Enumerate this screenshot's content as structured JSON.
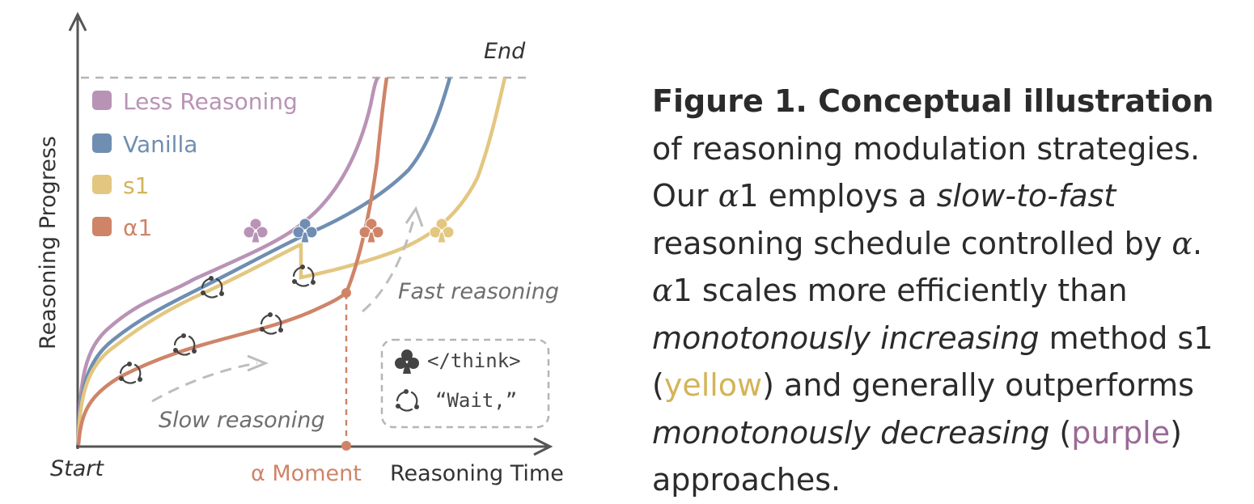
{
  "diagram": {
    "y_axis_label": "Reasoning Progress",
    "x_axis_label": "Reasoning Time",
    "start_label": "Start",
    "end_label": "End",
    "alpha_moment_label": "α Moment",
    "slow_label": "Slow reasoning",
    "fast_label": "Fast reasoning",
    "legend": [
      {
        "key": "less",
        "label": "Less Reasoning",
        "color": "#b993b6"
      },
      {
        "key": "vanilla",
        "label": "Vanilla",
        "color": "#6f8eb2"
      },
      {
        "key": "s1",
        "label": "s1",
        "color": "#e3c780"
      },
      {
        "key": "alpha1",
        "label": "α1",
        "color": "#cf8468"
      }
    ],
    "key_box": {
      "think_icon": "club-icon",
      "think_text": "</think>",
      "wait_icon": "cycle-icon",
      "wait_text": "“Wait,”"
    }
  },
  "caption": {
    "p1": "Figure 1. Conceptual illustration",
    "p2": " of reasoning modulation strategies. Our ",
    "p3": "α",
    "p4": "1 employs a ",
    "p5": "slow-to-fast",
    "p6": " reasoning schedule controlled by ",
    "p7": "α",
    "p8": ". ",
    "p9": "α",
    "p10": "1 scales more efficiently than ",
    "p11": "monotonously increasing",
    "p12": " method s1 (",
    "p13": "yellow",
    "p14": ") and generally outperforms ",
    "p15": "monotonously decreasing",
    "p16": " (",
    "p17": "purple",
    "p18": ") approaches.",
    "yellow_color": "#d4b458",
    "purple_color": "#9a6a96"
  }
}
